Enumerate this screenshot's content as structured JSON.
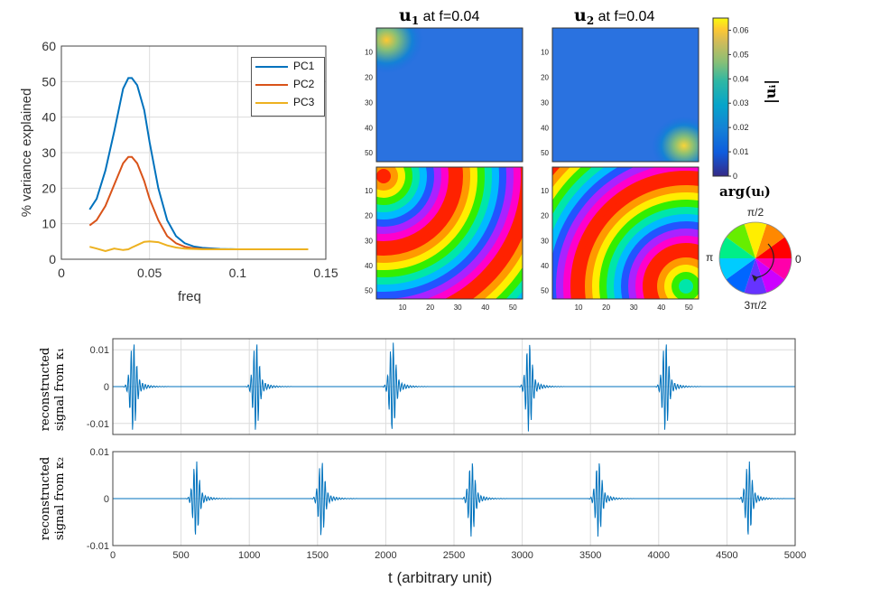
{
  "colors": {
    "pc1": "#0072BD",
    "pc2": "#D95319",
    "pc3": "#EDB120",
    "signal": "#0072BD",
    "grid": "#dcdcdc"
  },
  "chart_data": [
    {
      "type": "line",
      "ylabel": "% variance explained",
      "xlabel": "freq",
      "xlim": [
        0,
        0.15
      ],
      "ylim": [
        0,
        60
      ],
      "xticks": [
        "0",
        "0.05",
        "0.1",
        "0.15"
      ],
      "yticks": [
        "0",
        "10",
        "20",
        "30",
        "40",
        "50",
        "60"
      ],
      "x": [
        0.016,
        0.02,
        0.025,
        0.03,
        0.035,
        0.038,
        0.04,
        0.043,
        0.047,
        0.05,
        0.055,
        0.06,
        0.065,
        0.07,
        0.075,
        0.08,
        0.09,
        0.1,
        0.11,
        0.12,
        0.14
      ],
      "series": [
        {
          "name": "PC1",
          "values": [
            14,
            17,
            25,
            36,
            48,
            51,
            51,
            49,
            42,
            33,
            20,
            11,
            6.5,
            4.5,
            3.6,
            3.2,
            2.9,
            2.8,
            2.8,
            2.8,
            2.8
          ]
        },
        {
          "name": "PC2",
          "values": [
            9.5,
            11,
            15,
            21,
            27,
            28.8,
            28.8,
            27,
            22,
            17,
            11,
            6.5,
            4.5,
            3.5,
            3.1,
            2.9,
            2.8,
            2.8,
            2.8,
            2.8,
            2.8
          ]
        },
        {
          "name": "PC3",
          "values": [
            3.5,
            3,
            2.3,
            3,
            2.6,
            2.8,
            3.3,
            4,
            4.9,
            5,
            4.8,
            3.9,
            3.3,
            3,
            2.9,
            2.8,
            2.8,
            2.8,
            2.8,
            2.8,
            2.8
          ]
        }
      ]
    },
    {
      "type": "heatmap",
      "title": "u1 at f=0.04",
      "ticks": [
        "10",
        "20",
        "30",
        "40",
        "50"
      ],
      "colorbar": {
        "label": "|u_i|",
        "ticks": [
          "0",
          "0.01",
          "0.02",
          "0.03",
          "0.04",
          "0.05",
          "0.06"
        ],
        "range": [
          0,
          0.065
        ]
      },
      "phase_wheel": {
        "label": "arg(u_i)",
        "labels": {
          "top": "π/2",
          "right": "0",
          "left": "π",
          "bottom": "3π/2"
        }
      }
    },
    {
      "type": "heatmap",
      "title": "u2 at f=0.04",
      "ticks": [
        "10",
        "20",
        "30",
        "40",
        "50"
      ]
    },
    {
      "type": "line",
      "ylabel": "reconstructed signal from κ1",
      "xlim": [
        0,
        5000
      ],
      "ylim": [
        -0.013,
        0.013
      ],
      "yticks": [
        "-0.01",
        "0",
        "0.01"
      ],
      "burst_centers": [
        150,
        1050,
        2050,
        3050,
        4050
      ],
      "amplitude": 0.0125
    },
    {
      "type": "line",
      "ylabel": "reconstructed signal from κ2",
      "xlabel": "t (arbitrary unit)",
      "xlim": [
        0,
        5000
      ],
      "ylim": [
        -0.01,
        0.01
      ],
      "xticks": [
        "0",
        "500",
        "1000",
        "1500",
        "2000",
        "2500",
        "3000",
        "3500",
        "4000",
        "4500",
        "5000"
      ],
      "yticks": [
        "-0.01",
        "0",
        "0.01"
      ],
      "burst_centers": [
        610,
        1530,
        2630,
        3560,
        4660
      ],
      "amplitude": 0.0083
    }
  ],
  "titles": {
    "u1_bold": "u",
    "u1_sub": "1",
    "u1_rest": " at f=0.04",
    "u2_bold": "u",
    "u2_sub": "2",
    "u2_rest": " at f=0.04"
  },
  "labels": {
    "freq": "freq",
    "t": "t (arbitrary unit)",
    "y1a": "reconstructed",
    "y1b": "signal from κ₁",
    "y2a": "reconstructed",
    "y2b": "signal from κ₂",
    "arg": "arg(uᵢ)",
    "cb": "|uᵢ|"
  }
}
